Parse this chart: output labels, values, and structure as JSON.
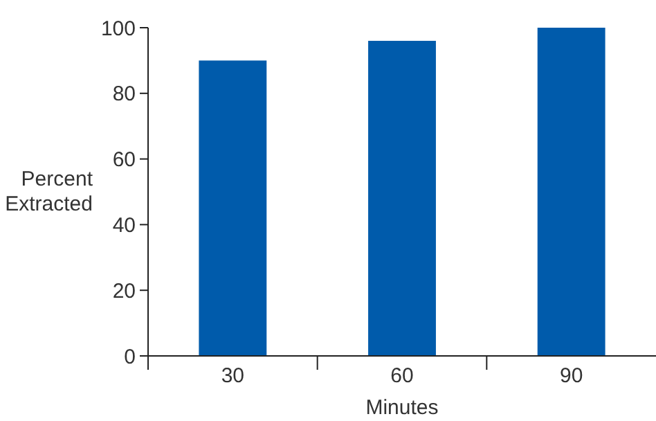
{
  "chart_data": {
    "type": "bar",
    "categories": [
      "30",
      "60",
      "90"
    ],
    "values": [
      90,
      96,
      100
    ],
    "color": "#005bab",
    "xlabel": "Minutes",
    "ylabel": "Percent Extracted",
    "ylim": [
      0,
      100
    ],
    "yticks": [
      0,
      20,
      40,
      60,
      80,
      100
    ],
    "grid": false
  }
}
